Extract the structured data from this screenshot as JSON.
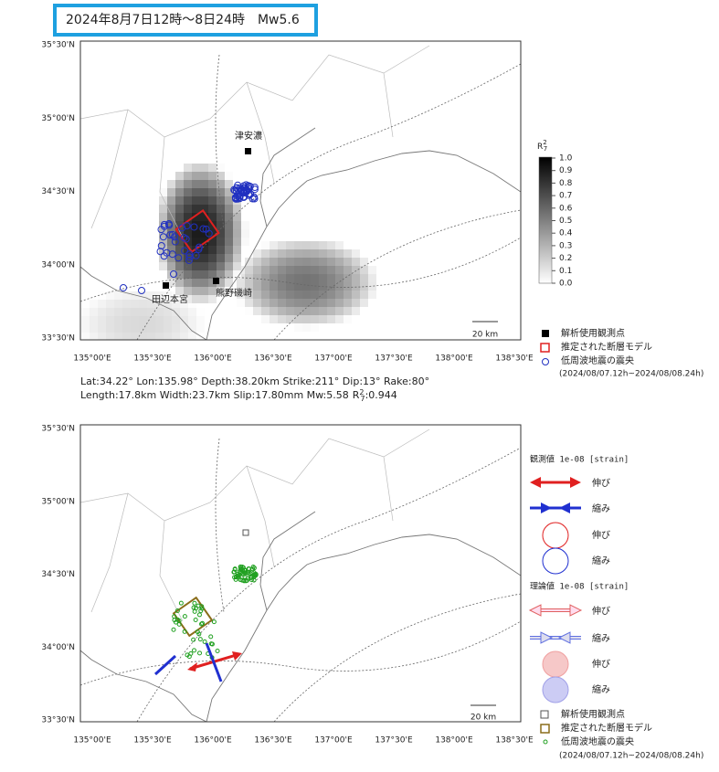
{
  "header": {
    "title": "2024年8月7日12時～8日24時　Mw5.6"
  },
  "map1": {
    "lat_labels": [
      "35°30'N",
      "35°00'N",
      "34°30'N",
      "34°00'N",
      "33°30'N"
    ],
    "lon_labels": [
      "135°00'E",
      "135°30'E",
      "136°00'E",
      "136°30'E",
      "137°00'E",
      "137°30'E",
      "138°00'E",
      "138°30'E"
    ],
    "stations": [
      "津安濃",
      "田辺本宮",
      "熊野磯崎"
    ],
    "scale": "20 km",
    "colorbar": {
      "symbol": "R",
      "sup": "2",
      "sub": "7",
      "ticks": [
        "1.0",
        "0.9",
        "0.8",
        "0.7",
        "0.6",
        "0.5",
        "0.4",
        "0.3",
        "0.2",
        "0.1",
        "0.0"
      ]
    },
    "legend": [
      "解析使用観測点",
      "推定された断層モデル",
      "低周波地震の震央",
      "(2024/08/07.12h~2024/08/08.24h)"
    ]
  },
  "params": {
    "line1": "Lat:34.22° Lon:135.98° Depth:38.20km Strike:211° Dip:13° Rake:80°",
    "line2": "Length:17.8km Width:23.7km Slip:17.80mm Mw:5.58",
    "symbol": "R",
    "sup": "2",
    "sub": "7",
    "value": ":0.944"
  },
  "map2": {
    "lat_labels": [
      "35°30'N",
      "35°00'N",
      "34°30'N",
      "34°00'N",
      "33°30'N"
    ],
    "lon_labels": [
      "135°00'E",
      "135°30'E",
      "136°00'E",
      "136°30'E",
      "137°00'E",
      "137°30'E",
      "138°00'E",
      "138°30'E"
    ],
    "scale": "20 km",
    "observed": {
      "header": "観測値 1e-08 [strain]",
      "items": [
        "伸び",
        "縮み",
        "伸び",
        "縮み"
      ]
    },
    "theory": {
      "header": "理論値 1e-08 [strain]",
      "items": [
        "伸び",
        "縮み",
        "伸び",
        "縮み"
      ]
    },
    "legend": [
      "解析使用観測点",
      "推定された断層モデル",
      "低周波地震の震央",
      "(2024/08/07.12h~2024/08/08.24h)"
    ]
  }
}
